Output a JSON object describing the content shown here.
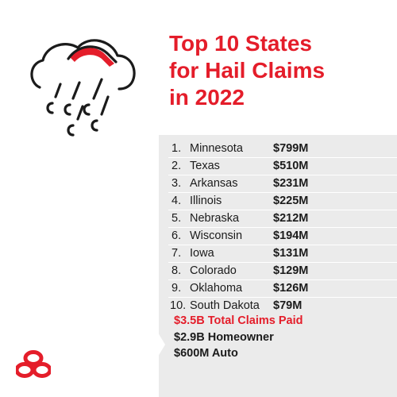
{
  "header": {
    "title_lines": [
      "Top 10 States",
      "for Hail Claims",
      "in 2022"
    ]
  },
  "states": [
    {
      "rank": "1.",
      "name": "Minnesota",
      "amount": "$799M"
    },
    {
      "rank": "2.",
      "name": "Texas",
      "amount": "$510M"
    },
    {
      "rank": "3.",
      "name": "Arkansas",
      "amount": "$231M"
    },
    {
      "rank": "4.",
      "name": "Illinois",
      "amount": "$225M"
    },
    {
      "rank": "5.",
      "name": "Nebraska",
      "amount": "$212M"
    },
    {
      "rank": "6.",
      "name": "Wisconsin",
      "amount": "$194M"
    },
    {
      "rank": "7.",
      "name": "Iowa",
      "amount": "$131M"
    },
    {
      "rank": "8.",
      "name": "Colorado",
      "amount": "$129M"
    },
    {
      "rank": "9.",
      "name": "Oklahoma",
      "amount": "$126M"
    },
    {
      "rank": "10.",
      "name": "South Dakota",
      "amount": "$79M"
    }
  ],
  "totals": {
    "total_paid": "$3.5B Total Claims Paid",
    "homeowner": "$2.9B Homeowner",
    "auto": "$600M Auto"
  },
  "colors": {
    "accent": "#e41d2a",
    "panel": "#ebebeb",
    "text": "#1b1b1b"
  },
  "icons": {
    "hail": "hail-cloud-icon",
    "brand": "three-ovals-logo-icon"
  }
}
